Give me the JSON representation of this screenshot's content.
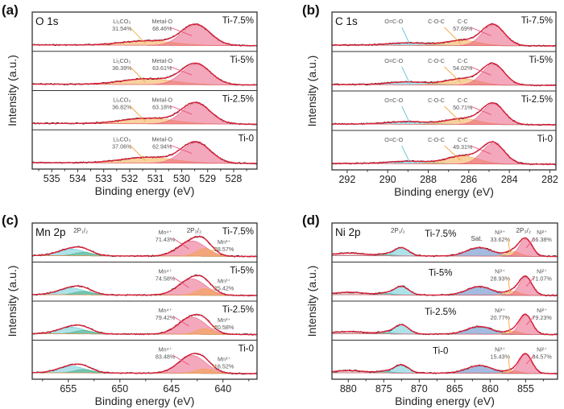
{
  "chart_data": [
    {
      "panel": "(a)",
      "title": "O 1s",
      "type": "area",
      "xlabel": "Binding energy (eV)",
      "ylabel": "Intensity (a.u.)",
      "xlim": [
        535.75,
        527.1
      ],
      "xticks": [
        535,
        534,
        533,
        532,
        531,
        530,
        529,
        528
      ],
      "envelope_color": "#e0203a",
      "components": [
        {
          "label": "Li₂CO₃",
          "center": 531.3,
          "sigma": 1.0,
          "color": "#f4a340"
        },
        {
          "label": "Metal-O",
          "center": 529.45,
          "sigma": 0.55,
          "color": "#e8517a"
        }
      ],
      "group_labels": [],
      "samples": [
        {
          "name": "Ti-7.5%",
          "components": [
            {
              "amp": 0.22,
              "percent": "31.54%"
            },
            {
              "amp": 1.0,
              "percent": "68.46%"
            }
          ]
        },
        {
          "name": "Ti-5%",
          "components": [
            {
              "amp": 0.28,
              "percent": "36.39%"
            },
            {
              "amp": 1.0,
              "percent": "63.61%"
            }
          ]
        },
        {
          "name": "Ti-2.5%",
          "components": [
            {
              "amp": 0.27,
              "percent": "36.82%"
            },
            {
              "amp": 1.0,
              "percent": "63.18%"
            }
          ]
        },
        {
          "name": "Ti-0",
          "components": [
            {
              "amp": 0.28,
              "percent": "37.06%"
            },
            {
              "amp": 1.0,
              "percent": "62.94%"
            }
          ]
        }
      ]
    },
    {
      "panel": "(b)",
      "title": "C 1s",
      "type": "area",
      "xlabel": "Binding energy (eV)",
      "ylabel": "Intensity (a.u.)",
      "xlim": [
        292.75,
        281.7
      ],
      "xticks": [
        292,
        290,
        288,
        286,
        284,
        282
      ],
      "envelope_color": "#e0203a",
      "components": [
        {
          "label": "O=C-O",
          "center": 289.0,
          "sigma": 1.0,
          "color": "#5cc6d4"
        },
        {
          "label": "C-O-C",
          "center": 286.3,
          "sigma": 0.8,
          "color": "#f4a340"
        },
        {
          "label": "C-C",
          "center": 284.8,
          "sigma": 0.55,
          "color": "#e8517a"
        }
      ],
      "group_labels": [],
      "samples": [
        {
          "name": "Ti-7.5%",
          "components": [
            {
              "amp": 0.12,
              "percent": ""
            },
            {
              "amp": 0.25,
              "percent": ""
            },
            {
              "amp": 1.0,
              "percent": "57.69%"
            }
          ]
        },
        {
          "name": "Ti-5%",
          "components": [
            {
              "amp": 0.14,
              "percent": ""
            },
            {
              "amp": 0.3,
              "percent": ""
            },
            {
              "amp": 1.0,
              "percent": "54.02%"
            }
          ]
        },
        {
          "name": "Ti-2.5%",
          "components": [
            {
              "amp": 0.13,
              "percent": ""
            },
            {
              "amp": 0.28,
              "percent": ""
            },
            {
              "amp": 1.0,
              "percent": "50.71%"
            }
          ]
        },
        {
          "name": "Ti-0",
          "components": [
            {
              "amp": 0.12,
              "percent": ""
            },
            {
              "amp": 0.38,
              "percent": ""
            },
            {
              "amp": 1.0,
              "percent": "49.31%"
            }
          ]
        }
      ]
    },
    {
      "panel": "(c)",
      "title": "Mn 2p",
      "type": "area",
      "xlabel": "Binding energy (eV)",
      "ylabel": "Intensity (a.u.)",
      "xlim": [
        658.5,
        636.7
      ],
      "xticks": [
        655,
        650,
        645,
        640
      ],
      "envelope_color": "#e0203a",
      "components": [
        {
          "label": "",
          "center": 654.7,
          "sigma": 1.3,
          "color": "#5cc6d4"
        },
        {
          "label": "",
          "center": 653.5,
          "sigma": 0.9,
          "color": "#3daa78"
        },
        {
          "label": "Mn⁴⁺",
          "center": 643.0,
          "sigma": 1.3,
          "color": "#e8517a"
        },
        {
          "label": "Mn³⁺",
          "center": 641.8,
          "sigma": 0.8,
          "color": "#f4a340"
        }
      ],
      "group_labels": [
        "2P₁/₂",
        "2P₃/₂"
      ],
      "samples": [
        {
          "name": "Ti-7.5%",
          "components": [
            {
              "amp": 0.33,
              "percent": ""
            },
            {
              "amp": 0.17,
              "percent": ""
            },
            {
              "amp": 0.75,
              "percent": "71.43%"
            },
            {
              "amp": 0.38,
              "percent": "28.57%"
            }
          ]
        },
        {
          "name": "Ti-5%",
          "components": [
            {
              "amp": 0.33,
              "percent": ""
            },
            {
              "amp": 0.17,
              "percent": ""
            },
            {
              "amp": 0.8,
              "percent": "74.58%"
            },
            {
              "amp": 0.33,
              "percent": "25.42%"
            }
          ]
        },
        {
          "name": "Ti-2.5%",
          "components": [
            {
              "amp": 0.33,
              "percent": ""
            },
            {
              "amp": 0.17,
              "percent": ""
            },
            {
              "amp": 0.84,
              "percent": "79.42%"
            },
            {
              "amp": 0.28,
              "percent": "20.58%"
            }
          ]
        },
        {
          "name": "Ti-0",
          "components": [
            {
              "amp": 0.33,
              "percent": ""
            },
            {
              "amp": 0.17,
              "percent": ""
            },
            {
              "amp": 0.88,
              "percent": "83.48%"
            },
            {
              "amp": 0.22,
              "percent": "16.52%"
            }
          ]
        }
      ]
    },
    {
      "panel": "(d)",
      "title": "Ni 2p",
      "type": "area",
      "xlabel": "Binding energy (eV)",
      "ylabel": "Intensity (a.u.)",
      "xlim": [
        882.3,
        850.5
      ],
      "xticks": [
        880,
        875,
        870,
        865,
        860,
        855
      ],
      "envelope_color": "#e0203a",
      "components": [
        {
          "label": "",
          "center": 879.8,
          "sigma": 2.2,
          "color": "#d9b7c0"
        },
        {
          "label": "",
          "center": 874.8,
          "sigma": 1.0,
          "color": "#3daa78"
        },
        {
          "label": "",
          "center": 872.5,
          "sigma": 1.0,
          "color": "#5cc6d4"
        },
        {
          "label": "",
          "center": 861.5,
          "sigma": 1.8,
          "color": "#4a78c0"
        },
        {
          "label": "Ni³⁺",
          "center": 856.8,
          "sigma": 1.0,
          "color": "#f4a340"
        },
        {
          "label": "Ni²⁺",
          "center": 855.0,
          "sigma": 0.9,
          "color": "#e8517a"
        }
      ],
      "group_labels": [
        "2P₁/₂",
        "Sat.",
        "2P₃/₂"
      ],
      "samples": [
        {
          "name": "Ti-7.5%",
          "components": [
            {
              "amp": 0.13,
              "percent": ""
            },
            {
              "amp": 0.08,
              "percent": ""
            },
            {
              "amp": 0.4,
              "percent": ""
            },
            {
              "amp": 0.42,
              "percent": ""
            },
            {
              "amp": 0.24,
              "percent": "33.62%"
            },
            {
              "amp": 0.85,
              "percent": "66.38%"
            }
          ]
        },
        {
          "name": "Ti-5%",
          "components": [
            {
              "amp": 0.12,
              "percent": ""
            },
            {
              "amp": 0.08,
              "percent": ""
            },
            {
              "amp": 0.42,
              "percent": ""
            },
            {
              "amp": 0.42,
              "percent": ""
            },
            {
              "amp": 0.2,
              "percent": "28.93%"
            },
            {
              "amp": 0.9,
              "percent": "71.07%"
            }
          ]
        },
        {
          "name": "Ti-2.5%",
          "components": [
            {
              "amp": 0.11,
              "percent": ""
            },
            {
              "amp": 0.08,
              "percent": ""
            },
            {
              "amp": 0.45,
              "percent": ""
            },
            {
              "amp": 0.38,
              "percent": ""
            },
            {
              "amp": 0.16,
              "percent": "20.77%"
            },
            {
              "amp": 0.95,
              "percent": "79.23%"
            }
          ]
        },
        {
          "name": "Ti-0",
          "components": [
            {
              "amp": 0.11,
              "percent": ""
            },
            {
              "amp": 0.08,
              "percent": ""
            },
            {
              "amp": 0.4,
              "percent": ""
            },
            {
              "amp": 0.38,
              "percent": ""
            },
            {
              "amp": 0.13,
              "percent": "15.43%"
            },
            {
              "amp": 0.95,
              "percent": "84.57%"
            }
          ]
        }
      ]
    }
  ]
}
